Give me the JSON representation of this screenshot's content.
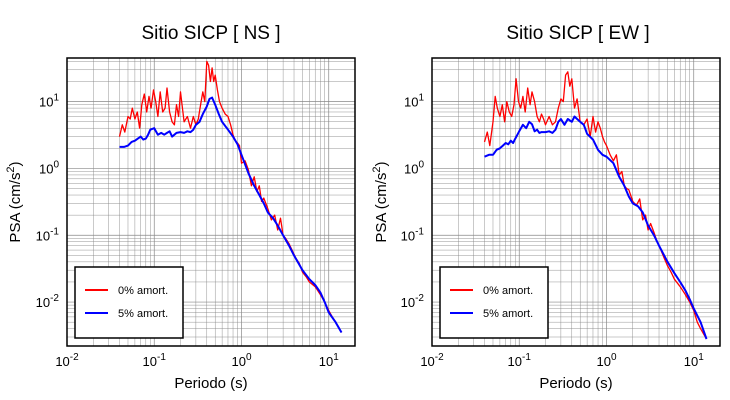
{
  "colors": {
    "series_0": "#ff0000",
    "series_5": "#0000ff",
    "grid": "#888888",
    "frame": "#000000"
  },
  "chart_data": [
    {
      "type": "line",
      "title": "Sitio SICP [ NS ]",
      "xlabel": "Periodo (s)",
      "ylabel_main": "PSA (cm/s",
      "ylabel_sup": "2",
      "ylabel_end": ")",
      "xscale": "log",
      "yscale": "log",
      "xlim": [
        0.01,
        20
      ],
      "ylim": [
        0.0022,
        45
      ],
      "grid": true,
      "legend_position": "bottom-left",
      "xtick_labels": [
        {
          "value": 0.01,
          "base": "10",
          "exp": "-2"
        },
        {
          "value": 0.1,
          "base": "10",
          "exp": "-1"
        },
        {
          "value": 1,
          "base": "10",
          "exp": "0"
        },
        {
          "value": 10,
          "base": "10",
          "exp": "1"
        }
      ],
      "ytick_labels": [
        {
          "value": 0.01,
          "base": "10",
          "exp": "-2"
        },
        {
          "value": 0.1,
          "base": "10",
          "exp": "-1"
        },
        {
          "value": 1,
          "base": "10",
          "exp": "0"
        },
        {
          "value": 10,
          "base": "10",
          "exp": "1"
        }
      ],
      "series": [
        {
          "name": "0% amort.",
          "color": "#ff0000",
          "x": [
            0.04,
            0.043,
            0.046,
            0.05,
            0.053,
            0.056,
            0.06,
            0.064,
            0.068,
            0.072,
            0.077,
            0.082,
            0.087,
            0.092,
            0.098,
            0.104,
            0.11,
            0.117,
            0.125,
            0.133,
            0.14,
            0.15,
            0.16,
            0.17,
            0.18,
            0.19,
            0.2,
            0.22,
            0.24,
            0.26,
            0.28,
            0.3,
            0.32,
            0.34,
            0.36,
            0.38,
            0.4,
            0.42,
            0.44,
            0.46,
            0.48,
            0.5,
            0.53,
            0.56,
            0.6,
            0.65,
            0.7,
            0.75,
            0.8,
            0.85,
            0.9,
            0.95,
            1.0,
            1.1,
            1.2,
            1.3,
            1.4,
            1.5,
            1.6,
            1.7,
            1.8,
            2.0,
            2.2,
            2.4,
            2.6,
            2.8,
            3.0,
            3.2,
            3.5,
            3.8,
            4.2,
            4.6,
            5.0,
            5.5,
            6.0,
            7.0,
            8.0,
            9.0,
            10.0,
            11.0,
            12.0,
            13.0,
            14.0
          ],
          "y": [
            3.0,
            4.5,
            3.5,
            6.0,
            5.5,
            8.0,
            5.5,
            7.0,
            4.0,
            9.0,
            13.0,
            7.0,
            12.0,
            8.0,
            15.0,
            10.0,
            6.0,
            14.0,
            7.0,
            8.0,
            16.0,
            7.0,
            5.0,
            4.5,
            9.0,
            6.0,
            14.0,
            5.0,
            6.0,
            4.0,
            6.0,
            4.5,
            5.5,
            9.0,
            14.0,
            10.0,
            40.0,
            35.0,
            20.0,
            32.0,
            20.0,
            25.0,
            15.0,
            10.0,
            8.0,
            6.5,
            6.0,
            4.5,
            3.2,
            2.6,
            2.4,
            2.2,
            1.2,
            1.3,
            0.95,
            0.55,
            0.75,
            0.45,
            0.55,
            0.32,
            0.36,
            0.25,
            0.17,
            0.2,
            0.12,
            0.18,
            0.1,
            0.09,
            0.075,
            0.06,
            0.045,
            0.038,
            0.028,
            0.024,
            0.02,
            0.017,
            0.013,
            0.01,
            0.0075,
            0.006,
            0.005,
            0.0042,
            0.0035
          ]
        },
        {
          "name": "5% amort.",
          "color": "#0000ff",
          "x": [
            0.04,
            0.045,
            0.05,
            0.055,
            0.06,
            0.065,
            0.07,
            0.075,
            0.08,
            0.085,
            0.09,
            0.1,
            0.11,
            0.12,
            0.13,
            0.14,
            0.15,
            0.16,
            0.17,
            0.18,
            0.2,
            0.22,
            0.24,
            0.26,
            0.28,
            0.3,
            0.33,
            0.36,
            0.4,
            0.43,
            0.46,
            0.5,
            0.55,
            0.6,
            0.7,
            0.8,
            0.9,
            1.0,
            1.2,
            1.4,
            1.6,
            1.8,
            2.0,
            2.3,
            2.6,
            3.0,
            3.5,
            4.0,
            4.5,
            5.0,
            6.0,
            7.0,
            8.0,
            9.0,
            10.0,
            12.0,
            14.0
          ],
          "y": [
            2.1,
            2.1,
            2.2,
            2.5,
            2.6,
            2.8,
            3.0,
            2.7,
            2.8,
            3.2,
            3.8,
            4.0,
            3.2,
            3.4,
            3.2,
            3.4,
            3.6,
            3.0,
            3.2,
            3.4,
            3.5,
            3.4,
            3.6,
            3.5,
            3.8,
            4.5,
            5.0,
            6.5,
            8.5,
            11.0,
            11.5,
            9.0,
            6.5,
            5.0,
            3.8,
            3.0,
            2.3,
            1.6,
            0.85,
            0.55,
            0.4,
            0.3,
            0.22,
            0.18,
            0.14,
            0.1,
            0.07,
            0.05,
            0.038,
            0.03,
            0.022,
            0.018,
            0.014,
            0.01,
            0.007,
            0.005,
            0.0035
          ]
        }
      ]
    },
    {
      "type": "line",
      "title": "Sitio SICP [ EW ]",
      "xlabel": "Periodo (s)",
      "ylabel_main": "PSA (cm/s",
      "ylabel_sup": "2",
      "ylabel_end": ")",
      "xscale": "log",
      "yscale": "log",
      "xlim": [
        0.01,
        20
      ],
      "ylim": [
        0.0022,
        45
      ],
      "grid": true,
      "legend_position": "bottom-left",
      "xtick_labels": [
        {
          "value": 0.01,
          "base": "10",
          "exp": "-2"
        },
        {
          "value": 0.1,
          "base": "10",
          "exp": "-1"
        },
        {
          "value": 1,
          "base": "10",
          "exp": "0"
        },
        {
          "value": 10,
          "base": "10",
          "exp": "1"
        }
      ],
      "ytick_labels": [
        {
          "value": 0.01,
          "base": "10",
          "exp": "-2"
        },
        {
          "value": 0.1,
          "base": "10",
          "exp": "-1"
        },
        {
          "value": 1,
          "base": "10",
          "exp": "0"
        },
        {
          "value": 10,
          "base": "10",
          "exp": "1"
        }
      ],
      "series": [
        {
          "name": "0% amort.",
          "color": "#ff0000",
          "x": [
            0.04,
            0.043,
            0.046,
            0.05,
            0.053,
            0.056,
            0.06,
            0.064,
            0.068,
            0.072,
            0.077,
            0.082,
            0.087,
            0.092,
            0.098,
            0.104,
            0.11,
            0.117,
            0.125,
            0.133,
            0.14,
            0.15,
            0.16,
            0.17,
            0.18,
            0.19,
            0.2,
            0.22,
            0.24,
            0.26,
            0.28,
            0.3,
            0.32,
            0.34,
            0.36,
            0.38,
            0.4,
            0.43,
            0.46,
            0.5,
            0.55,
            0.6,
            0.65,
            0.7,
            0.75,
            0.8,
            0.85,
            0.9,
            0.95,
            1.0,
            1.1,
            1.2,
            1.3,
            1.4,
            1.5,
            1.6,
            1.7,
            1.8,
            2.0,
            2.2,
            2.4,
            2.6,
            2.8,
            3.0,
            3.2,
            3.5,
            3.8,
            4.2,
            4.6,
            5.0,
            5.5,
            6.0,
            7.0,
            8.0,
            9.0,
            10.0,
            11.0,
            12.0,
            14.0
          ],
          "y": [
            2.5,
            3.5,
            2.2,
            5.0,
            12.0,
            8.0,
            6.0,
            9.0,
            5.0,
            10.0,
            7.0,
            6.0,
            9.0,
            22.0,
            10.0,
            8.0,
            12.0,
            7.0,
            16.0,
            9.0,
            14.0,
            10.0,
            6.0,
            5.0,
            6.5,
            5.5,
            4.5,
            6.0,
            4.5,
            5.0,
            8.0,
            11.0,
            10.0,
            25.0,
            28.0,
            17.0,
            22.0,
            8.0,
            11.0,
            5.0,
            4.5,
            5.5,
            3.0,
            6.0,
            3.5,
            5.0,
            4.0,
            3.0,
            2.5,
            2.2,
            1.6,
            1.3,
            1.6,
            0.8,
            0.9,
            0.55,
            0.5,
            0.48,
            0.32,
            0.28,
            0.35,
            0.17,
            0.2,
            0.12,
            0.15,
            0.11,
            0.08,
            0.06,
            0.045,
            0.035,
            0.028,
            0.022,
            0.017,
            0.013,
            0.01,
            0.0075,
            0.005,
            0.004,
            0.0028
          ]
        },
        {
          "name": "5% amort.",
          "color": "#0000ff",
          "x": [
            0.04,
            0.045,
            0.05,
            0.055,
            0.06,
            0.065,
            0.07,
            0.075,
            0.08,
            0.085,
            0.09,
            0.1,
            0.11,
            0.12,
            0.13,
            0.14,
            0.15,
            0.16,
            0.17,
            0.18,
            0.2,
            0.22,
            0.24,
            0.26,
            0.28,
            0.3,
            0.33,
            0.36,
            0.4,
            0.43,
            0.46,
            0.5,
            0.55,
            0.6,
            0.7,
            0.8,
            0.9,
            1.0,
            1.2,
            1.4,
            1.6,
            1.8,
            2.0,
            2.3,
            2.6,
            3.0,
            3.5,
            4.0,
            4.5,
            5.0,
            6.0,
            7.0,
            8.0,
            9.0,
            10.0,
            12.0,
            14.0
          ],
          "y": [
            1.5,
            1.6,
            1.6,
            1.9,
            2.0,
            2.2,
            2.4,
            2.3,
            2.6,
            2.4,
            2.8,
            3.6,
            4.5,
            4.0,
            5.0,
            4.6,
            3.6,
            3.8,
            3.4,
            3.5,
            3.5,
            3.6,
            3.4,
            3.8,
            5.0,
            5.5,
            4.5,
            5.5,
            5.0,
            6.0,
            5.5,
            5.0,
            4.5,
            3.3,
            2.7,
            1.9,
            1.6,
            1.5,
            1.2,
            0.75,
            0.55,
            0.38,
            0.3,
            0.27,
            0.22,
            0.14,
            0.1,
            0.07,
            0.052,
            0.04,
            0.027,
            0.02,
            0.015,
            0.011,
            0.008,
            0.005,
            0.0028
          ]
        }
      ]
    }
  ]
}
